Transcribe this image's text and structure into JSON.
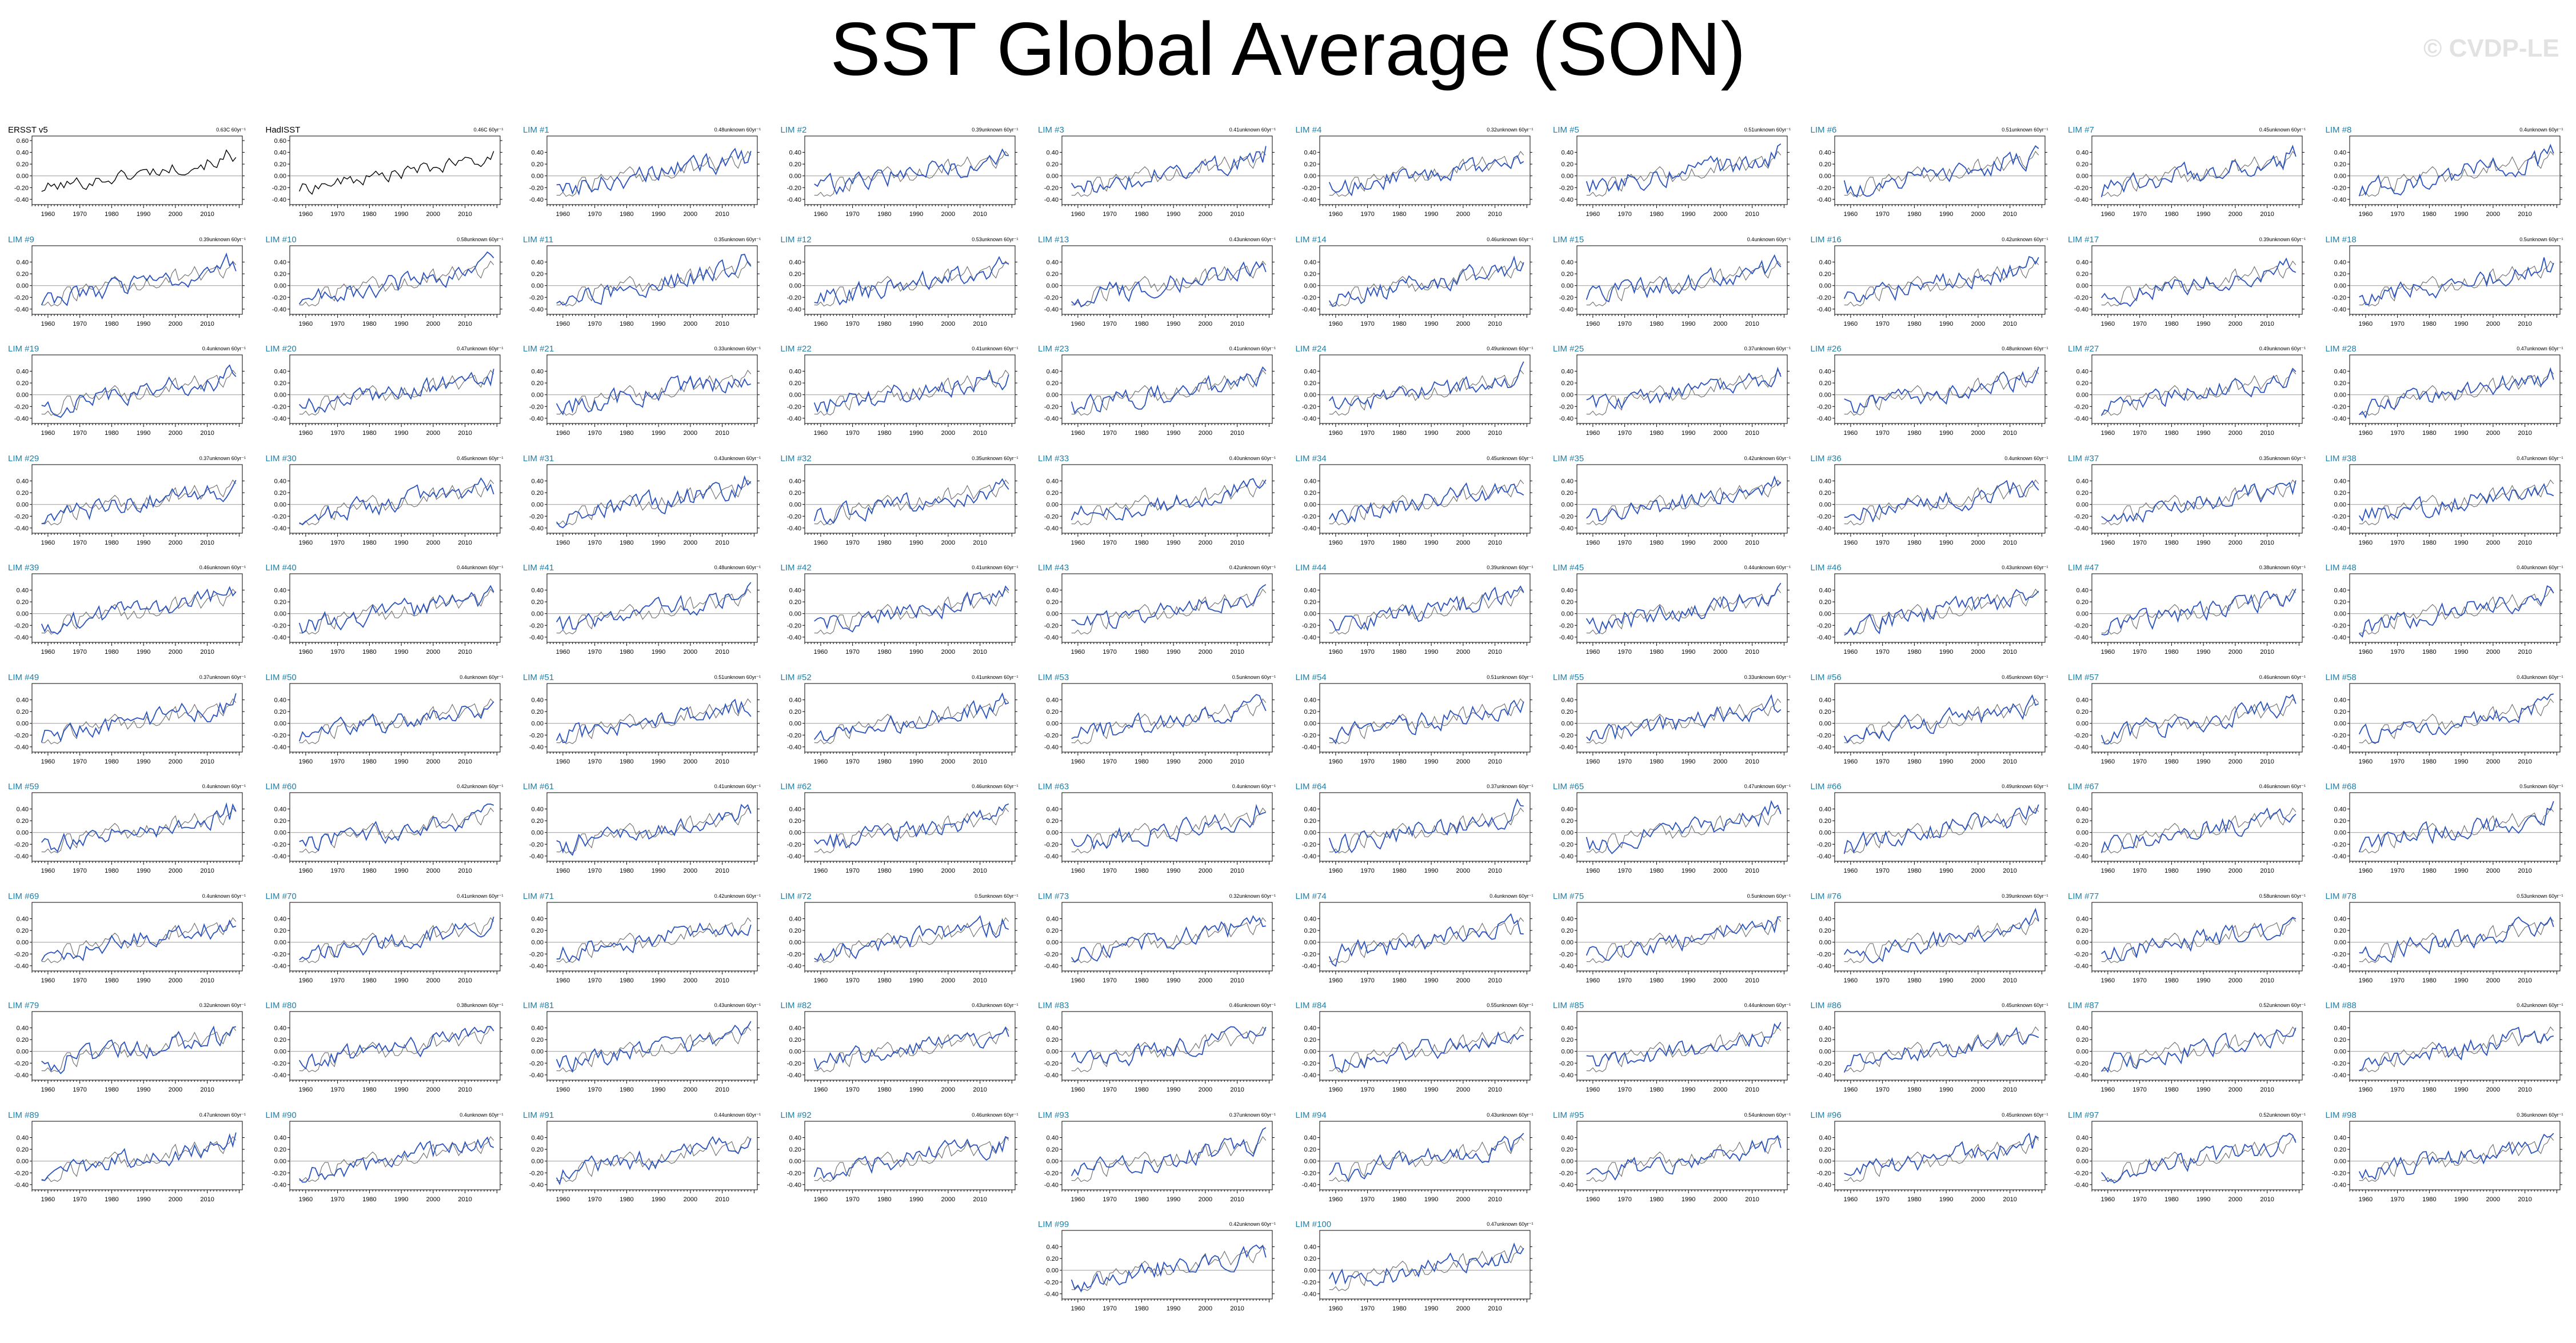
{
  "page": {
    "title": "SST Global Average (SON)",
    "watermark": "© CVDP-LE"
  },
  "colors": {
    "observation_line": "#6b6b6b",
    "member_line": "#2a52be",
    "zero_line": "#9a9a9a",
    "member_title": "#1f7fa8",
    "obs_title": "#000000"
  },
  "chart_data": {
    "type": "line",
    "description_note": "",
    "x_range": [
      1955,
      2021
    ],
    "y_range": [
      -0.45,
      0.6
    ],
    "yticks": [
      "0.60",
      "0.40",
      "0.20",
      "0.00",
      "-0.20",
      "-0.40"
    ],
    "yticks_member": [
      "0.40",
      "0.20",
      "0.00",
      "-0.20",
      "-0.40"
    ],
    "xticks": [
      "1960",
      "1970",
      "1980",
      "1990",
      "2000",
      "2010"
    ],
    "years": [
      1958,
      2019
    ],
    "observations": [
      {
        "name": "ERSST v5",
        "trend": "0.63C 60yr⁻¹"
      },
      {
        "name": "HadISST",
        "trend": "0.46C 60yr⁻¹"
      }
    ],
    "members": [
      {
        "name": "LIM #1",
        "trend": "0.48unknown 60yr⁻¹"
      },
      {
        "name": "LIM #2",
        "trend": "0.39unknown 60yr⁻¹"
      },
      {
        "name": "LIM #3",
        "trend": "0.41unknown 60yr⁻¹"
      },
      {
        "name": "LIM #4",
        "trend": "0.32unknown 60yr⁻¹"
      },
      {
        "name": "LIM #5",
        "trend": "0.51unknown 60yr⁻¹"
      },
      {
        "name": "LIM #6",
        "trend": "0.51unknown 60yr⁻¹"
      },
      {
        "name": "LIM #7",
        "trend": "0.45unknown 60yr⁻¹"
      },
      {
        "name": "LIM #8",
        "trend": "0.4unknown 60yr⁻¹"
      },
      {
        "name": "LIM #9",
        "trend": "0.39unknown 60yr⁻¹"
      },
      {
        "name": "LIM #10",
        "trend": "0.58unknown 60yr⁻¹"
      },
      {
        "name": "LIM #11",
        "trend": "0.35unknown 60yr⁻¹"
      },
      {
        "name": "LIM #12",
        "trend": "0.53unknown 60yr⁻¹"
      },
      {
        "name": "LIM #13",
        "trend": "0.43unknown 60yr⁻¹"
      },
      {
        "name": "LIM #14",
        "trend": "0.46unknown 60yr⁻¹"
      },
      {
        "name": "LIM #15",
        "trend": "0.4unknown 60yr⁻¹"
      },
      {
        "name": "LIM #16",
        "trend": "0.42unknown 60yr⁻¹"
      },
      {
        "name": "LIM #17",
        "trend": "0.39unknown 60yr⁻¹"
      },
      {
        "name": "LIM #18",
        "trend": "0.5unknown 60yr⁻¹"
      },
      {
        "name": "LIM #19",
        "trend": "0.4unknown 60yr⁻¹"
      },
      {
        "name": "LIM #20",
        "trend": "0.47unknown 60yr⁻¹"
      },
      {
        "name": "LIM #21",
        "trend": "0.33unknown 60yr⁻¹"
      },
      {
        "name": "LIM #22",
        "trend": "0.41unknown 60yr⁻¹"
      },
      {
        "name": "LIM #23",
        "trend": "0.41unknown 60yr⁻¹"
      },
      {
        "name": "LIM #24",
        "trend": "0.49unknown 60yr⁻¹"
      },
      {
        "name": "LIM #25",
        "trend": "0.37unknown 60yr⁻¹"
      },
      {
        "name": "LIM #26",
        "trend": "0.48unknown 60yr⁻¹"
      },
      {
        "name": "LIM #27",
        "trend": "0.49unknown 60yr⁻¹"
      },
      {
        "name": "LIM #28",
        "trend": "0.47unknown 60yr⁻¹"
      },
      {
        "name": "LIM #29",
        "trend": "0.37unknown 60yr⁻¹"
      },
      {
        "name": "LIM #30",
        "trend": "0.45unknown 60yr⁻¹"
      },
      {
        "name": "LIM #31",
        "trend": "0.43unknown 60yr⁻¹"
      },
      {
        "name": "LIM #32",
        "trend": "0.35unknown 60yr⁻¹"
      },
      {
        "name": "LIM #33",
        "trend": "0.40unknown 60yr⁻¹"
      },
      {
        "name": "LIM #34",
        "trend": "0.45unknown 60yr⁻¹"
      },
      {
        "name": "LIM #35",
        "trend": "0.42unknown 60yr⁻¹"
      },
      {
        "name": "LIM #36",
        "trend": "0.4unknown 60yr⁻¹"
      },
      {
        "name": "LIM #37",
        "trend": "0.35unknown 60yr⁻¹"
      },
      {
        "name": "LIM #38",
        "trend": "0.47unknown 60yr⁻¹"
      },
      {
        "name": "LIM #39",
        "trend": "0.46unknown 60yr⁻¹"
      },
      {
        "name": "LIM #40",
        "trend": "0.44unknown 60yr⁻¹"
      },
      {
        "name": "LIM #41",
        "trend": "0.48unknown 60yr⁻¹"
      },
      {
        "name": "LIM #42",
        "trend": "0.41unknown 60yr⁻¹"
      },
      {
        "name": "LIM #43",
        "trend": "0.42unknown 60yr⁻¹"
      },
      {
        "name": "LIM #44",
        "trend": "0.39unknown 60yr⁻¹"
      },
      {
        "name": "LIM #45",
        "trend": "0.44unknown 60yr⁻¹"
      },
      {
        "name": "LIM #46",
        "trend": "0.43unknown 60yr⁻¹"
      },
      {
        "name": "LIM #47",
        "trend": "0.38unknown 60yr⁻¹"
      },
      {
        "name": "LIM #48",
        "trend": "0.40unknown 60yr⁻¹"
      },
      {
        "name": "LIM #49",
        "trend": "0.37unknown 60yr⁻¹"
      },
      {
        "name": "LIM #50",
        "trend": "0.4unknown 60yr⁻¹"
      },
      {
        "name": "LIM #51",
        "trend": "0.51unknown 60yr⁻¹"
      },
      {
        "name": "LIM #52",
        "trend": "0.41unknown 60yr⁻¹"
      },
      {
        "name": "LIM #53",
        "trend": "0.5unknown 60yr⁻¹"
      },
      {
        "name": "LIM #54",
        "trend": "0.51unknown 60yr⁻¹"
      },
      {
        "name": "LIM #55",
        "trend": "0.33unknown 60yr⁻¹"
      },
      {
        "name": "LIM #56",
        "trend": "0.45unknown 60yr⁻¹"
      },
      {
        "name": "LIM #57",
        "trend": "0.46unknown 60yr⁻¹"
      },
      {
        "name": "LIM #58",
        "trend": "0.43unknown 60yr⁻¹"
      },
      {
        "name": "LIM #59",
        "trend": "0.4unknown 60yr⁻¹"
      },
      {
        "name": "LIM #60",
        "trend": "0.42unknown 60yr⁻¹"
      },
      {
        "name": "LIM #61",
        "trend": "0.41unknown 60yr⁻¹"
      },
      {
        "name": "LIM #62",
        "trend": "0.46unknown 60yr⁻¹"
      },
      {
        "name": "LIM #63",
        "trend": "0.4unknown 60yr⁻¹"
      },
      {
        "name": "LIM #64",
        "trend": "0.37unknown 60yr⁻¹"
      },
      {
        "name": "LIM #65",
        "trend": "0.47unknown 60yr⁻¹"
      },
      {
        "name": "LIM #66",
        "trend": "0.49unknown 60yr⁻¹"
      },
      {
        "name": "LIM #67",
        "trend": "0.46unknown 60yr⁻¹"
      },
      {
        "name": "LIM #68",
        "trend": "0.5unknown 60yr⁻¹"
      },
      {
        "name": "LIM #69",
        "trend": "0.4unknown 60yr⁻¹"
      },
      {
        "name": "LIM #70",
        "trend": "0.41unknown 60yr⁻¹"
      },
      {
        "name": "LIM #71",
        "trend": "0.42unknown 60yr⁻¹"
      },
      {
        "name": "LIM #72",
        "trend": "0.5unknown 60yr⁻¹"
      },
      {
        "name": "LIM #73",
        "trend": "0.32unknown 60yr⁻¹"
      },
      {
        "name": "LIM #74",
        "trend": "0.4unknown 60yr⁻¹"
      },
      {
        "name": "LIM #75",
        "trend": "0.5unknown 60yr⁻¹"
      },
      {
        "name": "LIM #76",
        "trend": "0.39unknown 60yr⁻¹"
      },
      {
        "name": "LIM #77",
        "trend": "0.58unknown 60yr⁻¹"
      },
      {
        "name": "LIM #78",
        "trend": "0.53unknown 60yr⁻¹"
      },
      {
        "name": "LIM #79",
        "trend": "0.32unknown 60yr⁻¹"
      },
      {
        "name": "LIM #80",
        "trend": "0.38unknown 60yr⁻¹"
      },
      {
        "name": "LIM #81",
        "trend": "0.43unknown 60yr⁻¹"
      },
      {
        "name": "LIM #82",
        "trend": "0.43unknown 60yr⁻¹"
      },
      {
        "name": "LIM #83",
        "trend": "0.46unknown 60yr⁻¹"
      },
      {
        "name": "LIM #84",
        "trend": "0.55unknown 60yr⁻¹"
      },
      {
        "name": "LIM #85",
        "trend": "0.44unknown 60yr⁻¹"
      },
      {
        "name": "LIM #86",
        "trend": "0.45unknown 60yr⁻¹"
      },
      {
        "name": "LIM #87",
        "trend": "0.52unknown 60yr⁻¹"
      },
      {
        "name": "LIM #88",
        "trend": "0.42unknown 60yr⁻¹"
      },
      {
        "name": "LIM #89",
        "trend": "0.47unknown 60yr⁻¹"
      },
      {
        "name": "LIM #90",
        "trend": "0.4unknown 60yr⁻¹"
      },
      {
        "name": "LIM #91",
        "trend": "0.44unknown 60yr⁻¹"
      },
      {
        "name": "LIM #92",
        "trend": "0.46unknown 60yr⁻¹"
      },
      {
        "name": "LIM #93",
        "trend": "0.37unknown 60yr⁻¹"
      },
      {
        "name": "LIM #94",
        "trend": "0.43unknown 60yr⁻¹"
      },
      {
        "name": "LIM #95",
        "trend": "0.54unknown 60yr⁻¹"
      },
      {
        "name": "LIM #96",
        "trend": "0.45unknown 60yr⁻¹"
      },
      {
        "name": "LIM #97",
        "trend": "0.52unknown 60yr⁻¹"
      },
      {
        "name": "LIM #98",
        "trend": "0.36unknown 60yr⁻¹"
      },
      {
        "name": "LIM #99",
        "trend": "0.42unknown 60yr⁻¹"
      },
      {
        "name": "LIM #100",
        "trend": "0.47unknown 60yr⁻¹"
      }
    ]
  }
}
